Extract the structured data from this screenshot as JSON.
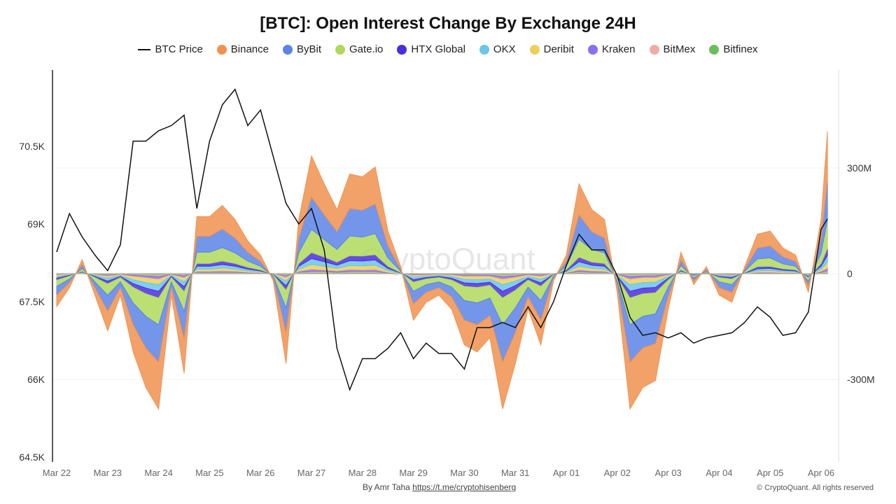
{
  "chart_data": {
    "type": "area",
    "title": "[BTC]: Open Interest Change By Exchange 24H",
    "watermark": "CryptoQuant",
    "left_axis": {
      "ticks": [
        "64.5K",
        "66K",
        "67.5K",
        "69K",
        "70.5K"
      ],
      "tick_values": [
        64.5,
        66,
        67.5,
        69,
        70.5
      ],
      "range": [
        64.5,
        72.2
      ]
    },
    "right_axis": {
      "ticks": [
        "-300M",
        "0",
        "300M"
      ],
      "tick_values": [
        -300,
        0,
        300
      ],
      "range": [
        -530,
        580
      ]
    },
    "x_ticks": [
      "Mar 22",
      "Mar 23",
      "Mar 24",
      "Mar 25",
      "Mar 26",
      "Mar 27",
      "Mar 28",
      "Mar 29",
      "Mar 30",
      "Mar 31",
      "Apr 01",
      "Apr 02",
      "Apr 03",
      "Apr 04",
      "Apr 05",
      "Apr 06"
    ],
    "legend_position": "top",
    "x": [
      "Mar 22 00:00",
      "Mar 22 06:00",
      "Mar 22 12:00",
      "Mar 22 18:00",
      "Mar 23 00:00",
      "Mar 23 06:00",
      "Mar 23 12:00",
      "Mar 23 18:00",
      "Mar 24 00:00",
      "Mar 24 06:00",
      "Mar 24 12:00",
      "Mar 24 18:00",
      "Mar 25 00:00",
      "Mar 25 06:00",
      "Mar 25 12:00",
      "Mar 25 18:00",
      "Mar 26 00:00",
      "Mar 26 06:00",
      "Mar 26 12:00",
      "Mar 26 18:00",
      "Mar 27 00:00",
      "Mar 27 06:00",
      "Mar 27 12:00",
      "Mar 27 18:00",
      "Mar 28 00:00",
      "Mar 28 06:00",
      "Mar 28 12:00",
      "Mar 28 18:00",
      "Mar 29 00:00",
      "Mar 29 06:00",
      "Mar 29 12:00",
      "Mar 29 18:00",
      "Mar 30 00:00",
      "Mar 30 06:00",
      "Mar 30 12:00",
      "Mar 30 18:00",
      "Mar 31 00:00",
      "Mar 31 06:00",
      "Mar 31 12:00",
      "Mar 31 18:00",
      "Apr 01 00:00",
      "Apr 01 06:00",
      "Apr 01 12:00",
      "Apr 01 18:00",
      "Apr 02 00:00",
      "Apr 02 06:00",
      "Apr 02 12:00",
      "Apr 02 18:00",
      "Apr 03 00:00",
      "Apr 03 06:00",
      "Apr 03 12:00",
      "Apr 03 18:00",
      "Apr 04 00:00",
      "Apr 04 06:00",
      "Apr 04 12:00",
      "Apr 04 18:00",
      "Apr 05 00:00",
      "Apr 05 06:00",
      "Apr 05 12:00",
      "Apr 05 18:00",
      "Apr 06 00:00",
      "Apr 06 03:00"
    ],
    "price_series": {
      "name": "BTC Price",
      "color": "#111111",
      "unit": "K USD",
      "values": [
        68.46,
        69.2,
        68.75,
        68.4,
        68.1,
        68.6,
        70.6,
        70.6,
        70.8,
        70.9,
        71.1,
        69.3,
        70.6,
        71.3,
        71.6,
        70.9,
        71.2,
        70.3,
        69.4,
        69.0,
        69.3,
        68.5,
        66.6,
        65.8,
        66.4,
        66.4,
        66.6,
        66.9,
        66.4,
        66.7,
        66.5,
        66.5,
        66.2,
        67.0,
        67.0,
        67.1,
        67.0,
        67.4,
        67.0,
        67.5,
        68.2,
        68.8,
        68.5,
        68.5,
        68.0,
        67.2,
        66.85,
        66.9,
        66.8,
        66.9,
        66.7,
        66.8,
        66.85,
        66.9,
        67.1,
        67.4,
        67.2,
        66.85,
        66.9,
        67.3,
        68.9,
        69.1
      ]
    },
    "series": [
      {
        "name": "Binance",
        "color": "#f0924f",
        "values": [
          -32,
          -14,
          14,
          -21,
          -56,
          -21,
          -77,
          -112,
          -133,
          -21,
          -98,
          56,
          56,
          67,
          53,
          32,
          18,
          -7,
          -88,
          53,
          116,
          88,
          63,
          98,
          95,
          105,
          42,
          7,
          -46,
          -28,
          -21,
          -35,
          -70,
          -77,
          -63,
          -133,
          -88,
          -35,
          -70,
          -7,
          18,
          88,
          63,
          53,
          -18,
          -133,
          -112,
          -105,
          -35,
          21,
          -11,
          7,
          -21,
          -28,
          7,
          39,
          42,
          25,
          18,
          -18,
          53,
          140
        ]
      },
      {
        "name": "ByBit",
        "color": "#5b84e8",
        "values": [
          -25,
          -11,
          11,
          -17,
          -45,
          -17,
          -62,
          -90,
          -106,
          -17,
          -78,
          45,
          45,
          53,
          42,
          25,
          14,
          -6,
          -70,
          42,
          92,
          70,
          50,
          78,
          76,
          84,
          34,
          6,
          -36,
          -22,
          -17,
          -28,
          -56,
          -62,
          -50,
          -106,
          -70,
          -28,
          -56,
          -6,
          14,
          70,
          50,
          42,
          -14,
          -106,
          -90,
          -84,
          -28,
          17,
          -8,
          6,
          -17,
          -22,
          6,
          31,
          34,
          20,
          14,
          -14,
          42,
          112
        ]
      },
      {
        "name": "Gate.io",
        "color": "#b0d95a",
        "values": [
          -18,
          -8,
          8,
          -12,
          -32,
          -12,
          -44,
          -64,
          -76,
          -12,
          -56,
          32,
          32,
          38,
          30,
          18,
          10,
          -4,
          -50,
          30,
          66,
          50,
          36,
          56,
          54,
          60,
          24,
          4,
          -26,
          -16,
          -12,
          -20,
          -40,
          -44,
          -36,
          -76,
          -50,
          -20,
          -40,
          -4,
          10,
          50,
          36,
          30,
          -10,
          -76,
          -64,
          -60,
          -20,
          12,
          -6,
          4,
          -12,
          -16,
          4,
          22,
          24,
          14,
          10,
          -10,
          30,
          80
        ]
      },
      {
        "name": "HTX Global",
        "color": "#4b2de0",
        "values": [
          -5,
          -2,
          2,
          -3,
          -8,
          -3,
          -11,
          -16,
          -19,
          -3,
          -14,
          8,
          8,
          10,
          8,
          5,
          3,
          -1,
          -13,
          8,
          17,
          13,
          9,
          14,
          14,
          15,
          6,
          1,
          -7,
          -4,
          -3,
          -5,
          -10,
          -11,
          -9,
          -19,
          -13,
          -5,
          -10,
          -1,
          3,
          13,
          9,
          8,
          -3,
          -19,
          -16,
          -15,
          -5,
          3,
          -2,
          1,
          -3,
          -4,
          1,
          6,
          6,
          4,
          3,
          -3,
          8,
          20
        ]
      },
      {
        "name": "OKX",
        "color": "#6cc5e6",
        "values": [
          -5,
          -2,
          2,
          -3,
          -8,
          -3,
          -11,
          -16,
          -19,
          -3,
          -14,
          8,
          8,
          10,
          8,
          5,
          3,
          -1,
          -13,
          8,
          17,
          13,
          9,
          14,
          14,
          15,
          6,
          1,
          -7,
          -4,
          -3,
          -5,
          -10,
          -11,
          -9,
          -19,
          -13,
          -5,
          -10,
          -1,
          3,
          13,
          9,
          8,
          -3,
          -19,
          -16,
          -15,
          -5,
          3,
          -2,
          1,
          -3,
          -4,
          1,
          6,
          6,
          4,
          3,
          -3,
          8,
          20
        ]
      },
      {
        "name": "Deribit",
        "color": "#ecd05a",
        "values": [
          -4,
          -2,
          2,
          -2,
          -6,
          -2,
          -9,
          -13,
          -15,
          -2,
          -11,
          6,
          6,
          8,
          6,
          4,
          2,
          -1,
          -10,
          6,
          13,
          10,
          7,
          11,
          11,
          12,
          5,
          1,
          -5,
          -3,
          -2,
          -4,
          -8,
          -9,
          -7,
          -15,
          -10,
          -4,
          -8,
          -1,
          2,
          10,
          7,
          6,
          -2,
          -15,
          -13,
          -12,
          -4,
          2,
          -1,
          1,
          -2,
          -3,
          1,
          4,
          5,
          3,
          2,
          -2,
          6,
          16
        ]
      },
      {
        "name": "Kraken",
        "color": "#8b6ff0",
        "values": [
          -2,
          -1,
          1,
          -1,
          -3,
          -1,
          -4,
          -6,
          -8,
          -1,
          -6,
          3,
          3,
          4,
          3,
          2,
          1,
          0,
          -5,
          3,
          7,
          5,
          4,
          6,
          5,
          6,
          2,
          0,
          -3,
          -2,
          -1,
          -2,
          -4,
          -4,
          -4,
          -8,
          -5,
          -2,
          -4,
          0,
          1,
          5,
          4,
          3,
          -1,
          -8,
          -6,
          -6,
          -2,
          1,
          -1,
          0,
          -1,
          -2,
          0,
          2,
          2,
          1,
          1,
          -1,
          3,
          8
        ]
      },
      {
        "name": "BitMex",
        "color": "#f2aaa5",
        "values": [
          -1,
          0,
          0,
          -1,
          -2,
          -1,
          -2,
          -3,
          -4,
          -1,
          -3,
          2,
          2,
          2,
          2,
          1,
          1,
          0,
          -3,
          2,
          3,
          3,
          2,
          3,
          3,
          3,
          1,
          0,
          -1,
          -1,
          -1,
          -1,
          -2,
          -2,
          -2,
          -4,
          -3,
          -1,
          -2,
          0,
          1,
          3,
          2,
          2,
          -1,
          -4,
          -3,
          -3,
          -1,
          1,
          0,
          0,
          -1,
          -1,
          0,
          1,
          1,
          1,
          1,
          -1,
          2,
          4
        ]
      },
      {
        "name": "Bitfinex",
        "color": "#6abf5c",
        "values": [
          -1,
          0,
          0,
          -1,
          -2,
          -1,
          -2,
          -3,
          -4,
          -1,
          -3,
          2,
          2,
          2,
          2,
          1,
          1,
          0,
          -3,
          2,
          3,
          3,
          2,
          3,
          3,
          3,
          1,
          0,
          -1,
          -1,
          -1,
          -1,
          -2,
          -2,
          -2,
          -4,
          -3,
          -1,
          -2,
          0,
          1,
          3,
          2,
          2,
          -1,
          -4,
          -3,
          -3,
          -1,
          1,
          0,
          0,
          -1,
          -1,
          0,
          1,
          1,
          1,
          1,
          -1,
          2,
          4
        ]
      }
    ]
  },
  "footer": {
    "author": "By Amr Taha",
    "link": "https://t.me/cryptohisenberg",
    "copyright": "© CryptoQuant. All rights reserved"
  }
}
